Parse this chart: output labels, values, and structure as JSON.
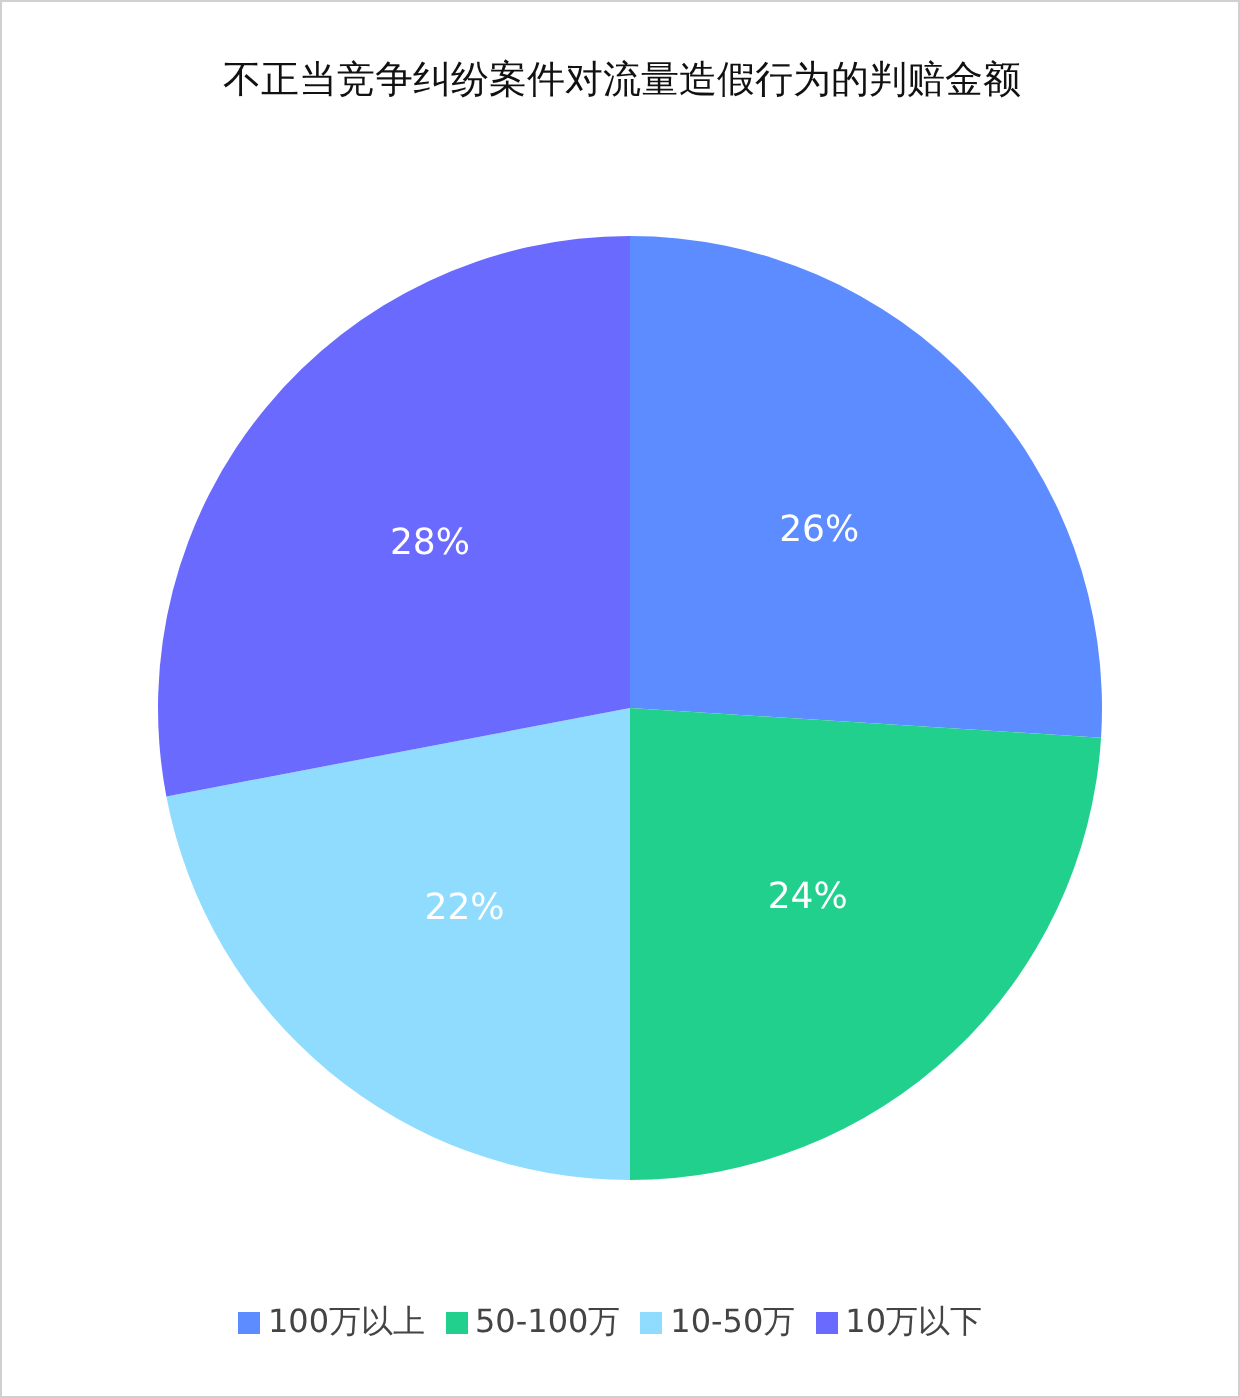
{
  "chart_data": {
    "type": "pie",
    "title": "不正当竞争纠纷案件对流量造假行为的判赔金额",
    "categories": [
      "100万以上",
      "50-100万",
      "10-50万",
      "10万以下"
    ],
    "values": [
      26,
      24,
      22,
      28
    ],
    "colors": [
      "#5c8cff",
      "#22d08e",
      "#8fdcff",
      "#6a6aff"
    ],
    "value_labels": [
      "26%",
      "24%",
      "22%",
      "28%"
    ],
    "legend": "bottom"
  }
}
